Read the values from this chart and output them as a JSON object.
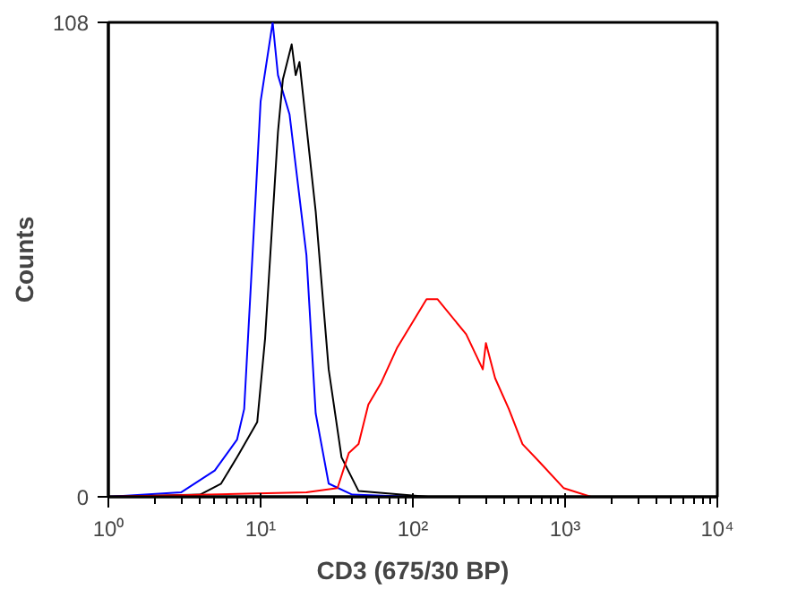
{
  "chart_data": {
    "type": "line",
    "xlabel": "CD3 (675/30 BP)",
    "ylabel": "Counts",
    "log": "x",
    "grid": false,
    "marker": "none",
    "line_style": "solid",
    "xlim": [
      1,
      10000
    ],
    "ylim": [
      0,
      108
    ],
    "xticks": [
      {
        "value": 1,
        "label": "10⁰"
      },
      {
        "value": 10,
        "label": "10¹"
      },
      {
        "value": 100,
        "label": "10²"
      },
      {
        "value": 1000,
        "label": "10³"
      },
      {
        "value": 10000,
        "label": "10⁴"
      }
    ],
    "yticks": [
      0,
      108
    ],
    "series": [
      {
        "color": "#0000ff",
        "x": [
          1,
          3,
          5,
          7,
          7.8,
          9.3,
          10,
          12,
          13,
          15.5,
          20,
          23,
          28,
          40,
          100
        ],
        "values": [
          0,
          1,
          6,
          13,
          20,
          69,
          90,
          108,
          96,
          87,
          55,
          19,
          3,
          0.5,
          0
        ]
      },
      {
        "color": "#000000",
        "x": [
          1,
          4,
          5.5,
          7,
          9.5,
          10.7,
          13,
          14,
          16,
          17,
          18,
          23,
          28,
          34,
          44,
          126
        ],
        "values": [
          0,
          0.5,
          3,
          9,
          17,
          36,
          83,
          95,
          103,
          96,
          99,
          65,
          29,
          9,
          1.3,
          0
        ]
      },
      {
        "color": "#ff0000",
        "x": [
          1,
          20,
          32,
          38,
          44,
          51,
          62,
          79,
          123,
          145,
          224,
          288,
          302,
          347,
          427,
          525,
          676,
          977,
          1479
        ],
        "values": [
          0,
          1,
          2,
          10,
          12,
          21,
          26,
          34,
          45,
          45,
          37,
          29,
          35,
          27,
          20,
          12,
          8,
          2,
          0
        ]
      }
    ]
  }
}
